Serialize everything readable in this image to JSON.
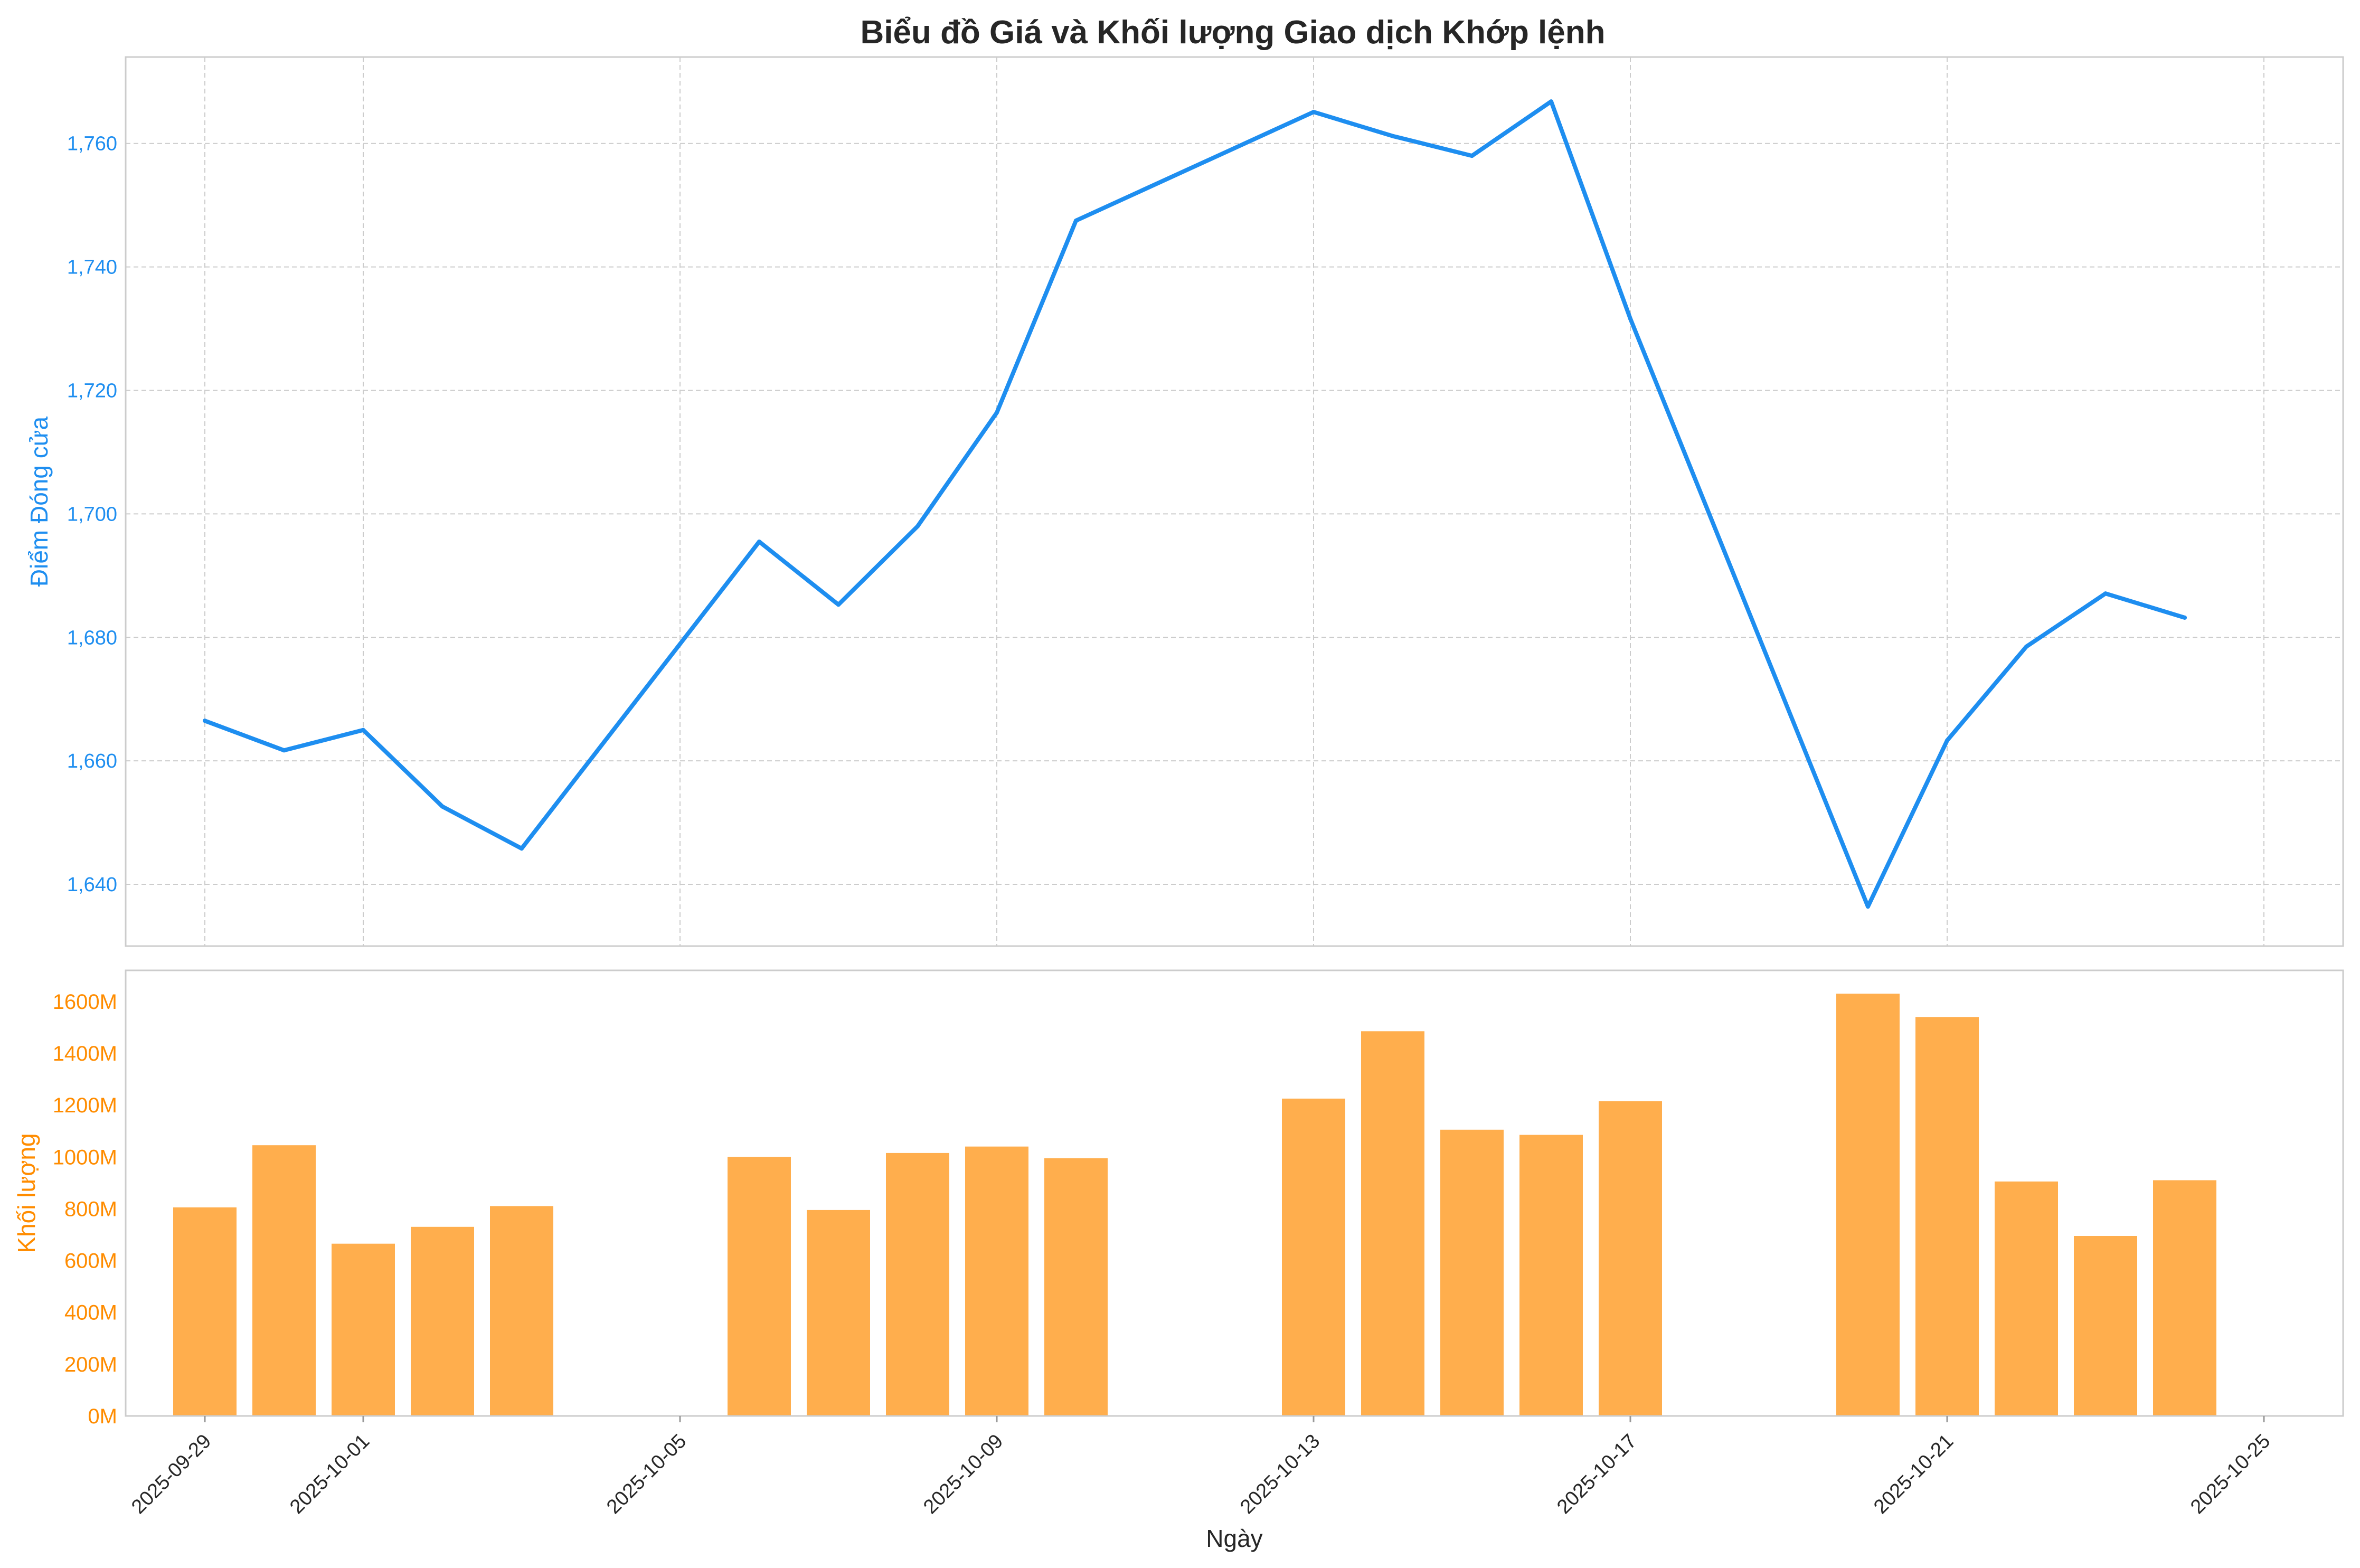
{
  "chart_data": {
    "type": "line+bar",
    "title": "Biểu đồ Giá và Khối lượng Giao dịch Khớp lệnh",
    "xlabel": "Ngày",
    "x_ticks": [
      "2025-09-29",
      "2025-10-01",
      "2025-10-05",
      "2025-10-09",
      "2025-10-13",
      "2025-10-17",
      "2025-10-21",
      "2025-10-25"
    ],
    "x_range": [
      "2025-09-28",
      "2025-10-26"
    ],
    "grid": true,
    "colors": {
      "price_line": "#1e8ef0",
      "volume_bar": "#ffae4d",
      "volume_axis": "#ff8c00",
      "grid": "#cccccc",
      "frame": "#cccccc"
    },
    "price": {
      "ylabel": "Điểm Đóng cửa",
      "ylim": [
        1630,
        1774
      ],
      "y_ticks": [
        1640,
        1660,
        1680,
        1700,
        1720,
        1740,
        1760
      ],
      "y_tick_labels": [
        "1,640",
        "1,660",
        "1,680",
        "1,700",
        "1,720",
        "1,740",
        "1,760"
      ],
      "points": [
        {
          "date": "2025-09-29",
          "close": 1666.5
        },
        {
          "date": "2025-09-30",
          "close": 1661.7
        },
        {
          "date": "2025-10-01",
          "close": 1665.0
        },
        {
          "date": "2025-10-02",
          "close": 1652.6
        },
        {
          "date": "2025-10-03",
          "close": 1645.8
        },
        {
          "date": "2025-10-06",
          "close": 1695.5
        },
        {
          "date": "2025-10-07",
          "close": 1685.3
        },
        {
          "date": "2025-10-08",
          "close": 1698.0
        },
        {
          "date": "2025-10-09",
          "close": 1716.4
        },
        {
          "date": "2025-10-10",
          "close": 1747.5
        },
        {
          "date": "2025-10-13",
          "close": 1765.1
        },
        {
          "date": "2025-10-14",
          "close": 1761.2
        },
        {
          "date": "2025-10-15",
          "close": 1758.0
        },
        {
          "date": "2025-10-16",
          "close": 1766.8
        },
        {
          "date": "2025-10-17",
          "close": 1731.6
        },
        {
          "date": "2025-10-20",
          "close": 1636.4
        },
        {
          "date": "2025-10-21",
          "close": 1663.3
        },
        {
          "date": "2025-10-22",
          "close": 1678.5
        },
        {
          "date": "2025-10-23",
          "close": 1687.1
        },
        {
          "date": "2025-10-24",
          "close": 1683.2
        }
      ]
    },
    "volume": {
      "ylabel": "Khối lượng",
      "unit": "M",
      "ylim": [
        0,
        1720
      ],
      "y_ticks": [
        0,
        200,
        400,
        600,
        800,
        1000,
        1200,
        1400,
        1600
      ],
      "y_tick_labels": [
        "0M",
        "200M",
        "400M",
        "600M",
        "800M",
        "1000M",
        "1200M",
        "1400M",
        "1600M"
      ],
      "bars": [
        {
          "date": "2025-09-29",
          "value": 805
        },
        {
          "date": "2025-09-30",
          "value": 1045
        },
        {
          "date": "2025-10-01",
          "value": 665
        },
        {
          "date": "2025-10-02",
          "value": 730
        },
        {
          "date": "2025-10-03",
          "value": 810
        },
        {
          "date": "2025-10-06",
          "value": 1000
        },
        {
          "date": "2025-10-07",
          "value": 795
        },
        {
          "date": "2025-10-08",
          "value": 1015
        },
        {
          "date": "2025-10-09",
          "value": 1040
        },
        {
          "date": "2025-10-10",
          "value": 995
        },
        {
          "date": "2025-10-13",
          "value": 1225
        },
        {
          "date": "2025-10-14",
          "value": 1485
        },
        {
          "date": "2025-10-15",
          "value": 1105
        },
        {
          "date": "2025-10-16",
          "value": 1085
        },
        {
          "date": "2025-10-17",
          "value": 1215
        },
        {
          "date": "2025-10-20",
          "value": 1630
        },
        {
          "date": "2025-10-21",
          "value": 1540
        },
        {
          "date": "2025-10-22",
          "value": 905
        },
        {
          "date": "2025-10-23",
          "value": 695
        },
        {
          "date": "2025-10-24",
          "value": 910
        }
      ]
    }
  }
}
